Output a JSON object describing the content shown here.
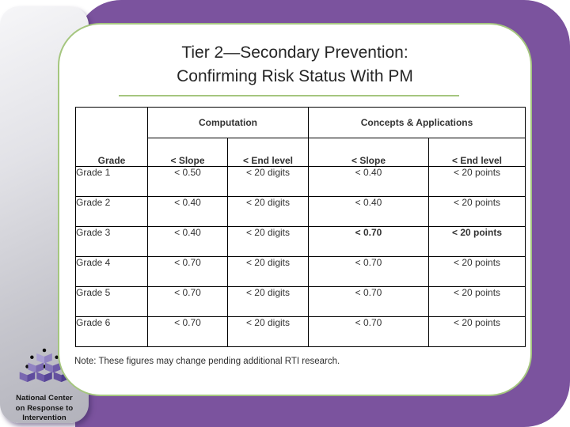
{
  "colors": {
    "purple": "#7b539e",
    "green": "#a5c67f",
    "highlight": "#3a2b5c",
    "card_gray": "#c6c6cd"
  },
  "slide": {
    "title_line1": "Tier 2—Secondary Prevention:",
    "title_line2": "Confirming Risk Status With PM",
    "note": "Note: These figures may change pending additional RTI research."
  },
  "table": {
    "group_headers": [
      "Computation",
      "Concepts & Applications"
    ],
    "col_headers": [
      "Grade",
      "< Slope",
      "< End level",
      "< Slope",
      "< End level"
    ],
    "rows": [
      {
        "grade": "Grade 1",
        "cells": [
          "< 0.50",
          "< 20 digits",
          "< 0.40",
          "< 20 points"
        ],
        "highlight": [
          false,
          false,
          false,
          false
        ]
      },
      {
        "grade": "Grade 2",
        "cells": [
          "< 0.40",
          "< 20 digits",
          "< 0.40",
          "< 20 points"
        ],
        "highlight": [
          false,
          false,
          false,
          false
        ]
      },
      {
        "grade": "Grade 3",
        "cells": [
          "< 0.40",
          "< 20 digits",
          "< 0.70",
          "< 20 points"
        ],
        "highlight": [
          false,
          false,
          true,
          true
        ]
      },
      {
        "grade": "Grade 4",
        "cells": [
          "< 0.70",
          "< 20 digits",
          "< 0.70",
          "< 20 points"
        ],
        "highlight": [
          false,
          false,
          false,
          false
        ]
      },
      {
        "grade": "Grade 5",
        "cells": [
          "< 0.70",
          "< 20 digits",
          "< 0.70",
          "< 20 points"
        ],
        "highlight": [
          false,
          false,
          false,
          false
        ]
      },
      {
        "grade": "Grade 6",
        "cells": [
          "< 0.70",
          "< 20 digits",
          "< 0.70",
          "< 20 points"
        ],
        "highlight": [
          false,
          false,
          false,
          false
        ]
      }
    ]
  },
  "logo": {
    "line1": "National Center",
    "line2": "on Response to",
    "line3": "Intervention"
  }
}
